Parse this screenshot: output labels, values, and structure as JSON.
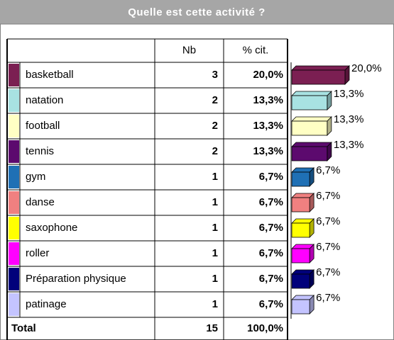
{
  "title": "Quelle est cette activité ?",
  "table": {
    "columns": [
      "Nb",
      "% cit."
    ],
    "rows": [
      {
        "label": "basketball",
        "nb": 3,
        "pct": 20.0,
        "pct_label": "20,0%",
        "color": "#7b1f52"
      },
      {
        "label": "natation",
        "nb": 2,
        "pct": 13.3,
        "pct_label": "13,3%",
        "color": "#a8e2e2"
      },
      {
        "label": "football",
        "nb": 2,
        "pct": 13.3,
        "pct_label": "13,3%",
        "color": "#ffffc4"
      },
      {
        "label": "tennis",
        "nb": 2,
        "pct": 13.3,
        "pct_label": "13,3%",
        "color": "#5c0a6e"
      },
      {
        "label": "gym",
        "nb": 1,
        "pct": 6.7,
        "pct_label": "6,7%",
        "color": "#1f70b5"
      },
      {
        "label": "danse",
        "nb": 1,
        "pct": 6.7,
        "pct_label": "6,7%",
        "color": "#f08080"
      },
      {
        "label": "saxophone",
        "nb": 1,
        "pct": 6.7,
        "pct_label": "6,7%",
        "color": "#ffff00"
      },
      {
        "label": "roller",
        "nb": 1,
        "pct": 6.7,
        "pct_label": "6,7%",
        "color": "#ff00ff"
      },
      {
        "label": "Préparation physique",
        "nb": 1,
        "pct": 6.7,
        "pct_label": "6,7%",
        "color": "#00007b"
      },
      {
        "label": "patinage",
        "nb": 1,
        "pct": 6.7,
        "pct_label": "6,7%",
        "color": "#c4c4ff"
      }
    ],
    "total": {
      "label": "Total",
      "nb": 15,
      "pct_label": "100,0%"
    }
  }
}
